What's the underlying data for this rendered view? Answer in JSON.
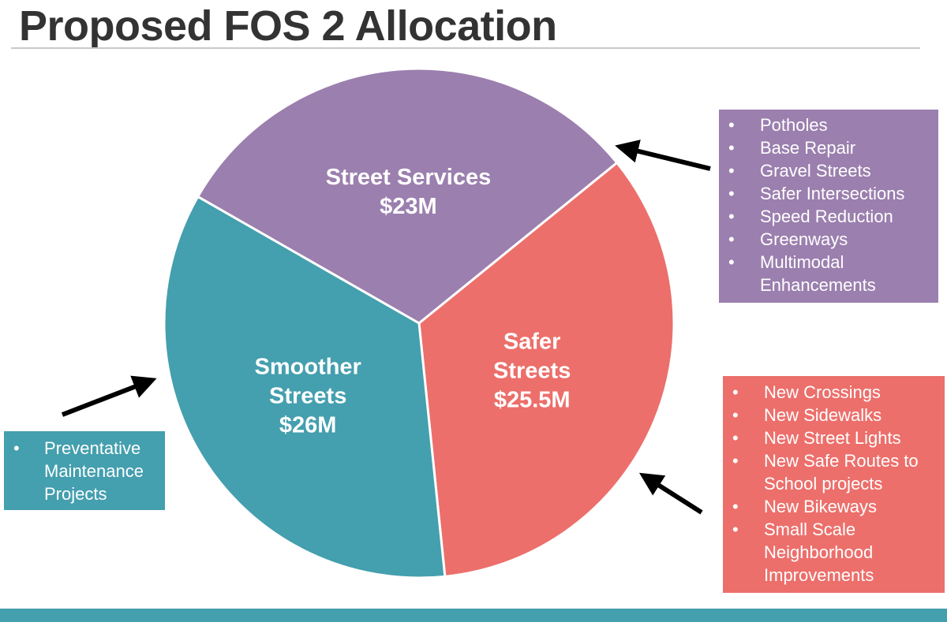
{
  "title": "Proposed FOS 2 Allocation",
  "colors": {
    "street_services": "#9b7fae",
    "safer_streets": "#ec6f6b",
    "smoother_streets": "#449fae",
    "title_text": "#333333",
    "bottom_bar": "#449fae"
  },
  "chart_data": {
    "type": "pie",
    "title": "Proposed FOS 2 Allocation",
    "unit": "$M",
    "slices": [
      {
        "name": "Street Services",
        "value": 23,
        "label_lines": [
          "Street Services",
          "$23M"
        ],
        "color": "#9b7fae"
      },
      {
        "name": "Safer Streets",
        "value": 25.5,
        "label_lines": [
          "Safer",
          "Streets",
          "$25.5M"
        ],
        "color": "#ec6f6b"
      },
      {
        "name": "Smoother Streets",
        "value": 26,
        "label_lines": [
          "Smoother",
          "Streets",
          "$26M"
        ],
        "color": "#449fae"
      }
    ]
  },
  "callouts": {
    "street_services": {
      "items": [
        "Potholes",
        "Base Repair",
        "Gravel Streets",
        "Safer Intersections",
        "Speed Reduction",
        "Greenways",
        "Multimodal Enhancements"
      ]
    },
    "safer_streets": {
      "items": [
        "New Crossings",
        "New Sidewalks",
        "New Street Lights",
        "New Safe Routes to School projects",
        "New Bikeways",
        "Small Scale Neighborhood Improvements"
      ]
    },
    "smoother_streets": {
      "items": [
        "Preventative Maintenance Projects"
      ]
    }
  }
}
